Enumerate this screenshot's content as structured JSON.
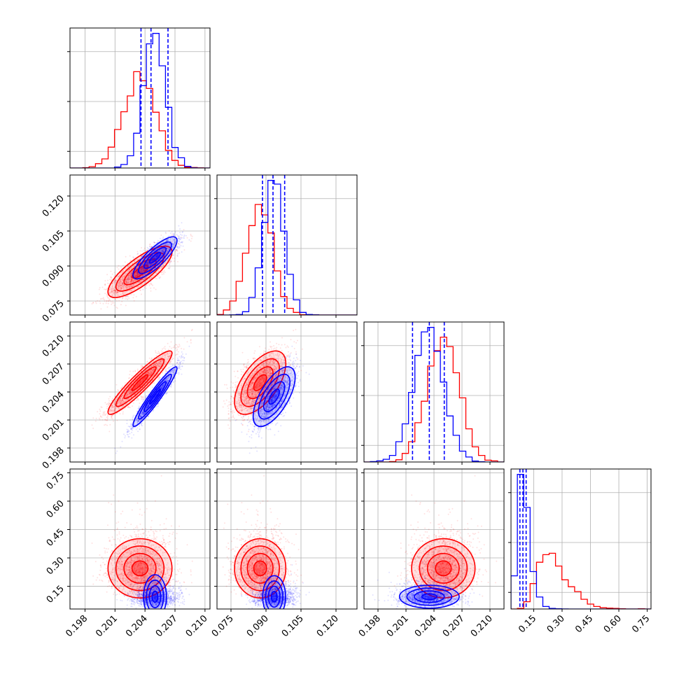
{
  "colors": {
    "red": "#ff0000",
    "blue": "#0000ff",
    "grid": "#b0b0b0",
    "axis": "#000000"
  },
  "chart_data": {
    "type": "corner",
    "title": "",
    "grid": true,
    "parameters": [
      {
        "range": [
          0.1965,
          0.2105
        ],
        "ticks": [
          0.198,
          0.201,
          0.204,
          0.207,
          0.21
        ],
        "tick_labels": [
          "0.198",
          "0.201",
          "0.204",
          "0.207",
          "0.210"
        ]
      },
      {
        "range": [
          0.069,
          0.129
        ],
        "ticks": [
          0.075,
          0.09,
          0.105,
          0.12
        ],
        "tick_labels": [
          "0.075",
          "0.090",
          "0.105",
          "0.120"
        ]
      },
      {
        "range": [
          0.1965,
          0.2115
        ],
        "ticks": [
          0.198,
          0.201,
          0.204,
          0.207,
          0.21
        ],
        "tick_labels": [
          "0.198",
          "0.201",
          "0.204",
          "0.207",
          "0.210"
        ]
      },
      {
        "range": [
          0.03,
          0.77
        ],
        "ticks": [
          0.15,
          0.3,
          0.45,
          0.6,
          0.75
        ],
        "tick_labels": [
          "0.15",
          "0.30",
          "0.45",
          "0.60",
          "0.75"
        ]
      }
    ],
    "series": [
      {
        "color": "red",
        "means": [
          0.2035,
          0.0875,
          0.205,
          0.245
        ],
        "sds": [
          0.0016,
          0.0055,
          0.0017,
          0.085
        ],
        "corr": [
          [
            1,
            0.78,
            0.93,
            0
          ],
          [
            0.78,
            1,
            0.6,
            0
          ],
          [
            0.93,
            0.6,
            1,
            0
          ],
          [
            0,
            0,
            0,
            1
          ]
        ]
      },
      {
        "color": "blue",
        "means": [
          0.205,
          0.0935,
          0.2035,
          0.095
        ],
        "sds": [
          0.0011,
          0.0045,
          0.0016,
          0.018
        ],
        "corr": [
          [
            1,
            0.82,
            0.95,
            0
          ],
          [
            0.82,
            1,
            0.65,
            0
          ],
          [
            0.95,
            0.65,
            1,
            0
          ],
          [
            0,
            0,
            0,
            1
          ]
        ]
      }
    ],
    "quantile_lines": [
      {
        "color": "blue",
        "values": [
          0.2036,
          0.2046,
          0.2063
        ]
      },
      {
        "color": "blue",
        "values": [
          0.0885,
          0.093,
          0.098
        ]
      },
      {
        "color": "blue",
        "values": [
          0.2017,
          0.2035,
          0.2051
        ]
      },
      {
        "color": "blue",
        "values": [
          0.077,
          0.093,
          0.11
        ]
      }
    ]
  }
}
